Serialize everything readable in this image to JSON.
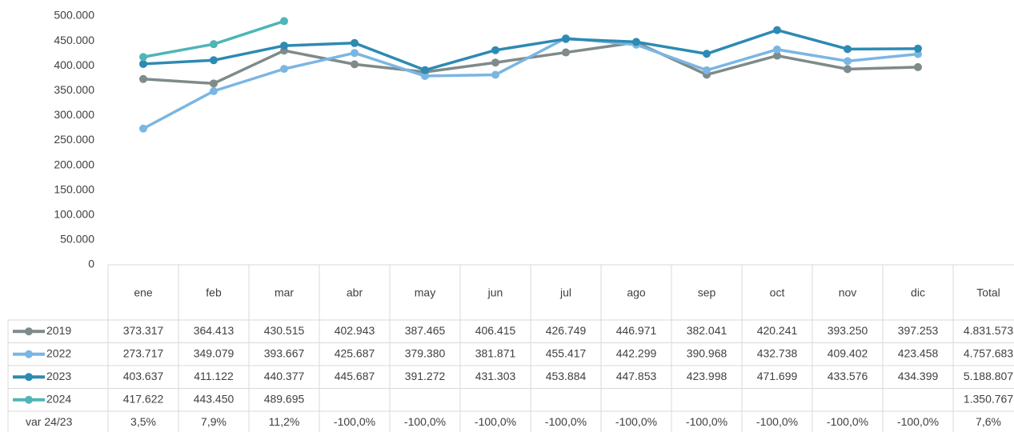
{
  "chart_data": {
    "type": "line",
    "categories": [
      "ene",
      "feb",
      "mar",
      "abr",
      "may",
      "jun",
      "jul",
      "ago",
      "sep",
      "oct",
      "nov",
      "dic"
    ],
    "total_header": "Total",
    "ylim": [
      0,
      500000
    ],
    "yticks": [
      {
        "value": 0,
        "label": "0"
      },
      {
        "value": 50000,
        "label": "50.000"
      },
      {
        "value": 100000,
        "label": "100.000"
      },
      {
        "value": 150000,
        "label": "150.000"
      },
      {
        "value": 200000,
        "label": "200.000"
      },
      {
        "value": 250000,
        "label": "250.000"
      },
      {
        "value": 300000,
        "label": "300.000"
      },
      {
        "value": 350000,
        "label": "350.000"
      },
      {
        "value": 400000,
        "label": "400.000"
      },
      {
        "value": 450000,
        "label": "450.000"
      },
      {
        "value": 500000,
        "label": "500.000"
      }
    ],
    "grid": false,
    "series": [
      {
        "name": "2019",
        "color": "#7f8a8a",
        "values": [
          373317,
          364413,
          430515,
          402943,
          387465,
          406415,
          426749,
          446971,
          382041,
          420241,
          393250,
          397253
        ],
        "value_labels": [
          "373.317",
          "364.413",
          "430.515",
          "402.943",
          "387.465",
          "406.415",
          "426.749",
          "446.971",
          "382.041",
          "420.241",
          "393.250",
          "397.253"
        ],
        "total": "4.831.573"
      },
      {
        "name": "2022",
        "color": "#7ab6e3",
        "values": [
          273717,
          349079,
          393667,
          425687,
          379380,
          381871,
          455417,
          442299,
          390968,
          432738,
          409402,
          423458
        ],
        "value_labels": [
          "273.717",
          "349.079",
          "393.667",
          "425.687",
          "379.380",
          "381.871",
          "455.417",
          "442.299",
          "390.968",
          "432.738",
          "409.402",
          "423.458"
        ],
        "total": "4.757.683"
      },
      {
        "name": "2023",
        "color": "#2d8ab3",
        "values": [
          403637,
          411122,
          440377,
          445687,
          391272,
          431303,
          453884,
          447853,
          423998,
          471699,
          433576,
          434399
        ],
        "value_labels": [
          "403.637",
          "411.122",
          "440.377",
          "445.687",
          "391.272",
          "431.303",
          "453.884",
          "447.853",
          "423.998",
          "471.699",
          "433.576",
          "434.399"
        ],
        "total": "5.188.807"
      },
      {
        "name": "2024",
        "color": "#4fb5b7",
        "values": [
          417622,
          443450,
          489695,
          null,
          null,
          null,
          null,
          null,
          null,
          null,
          null,
          null
        ],
        "value_labels": [
          "417.622",
          "443.450",
          "489.695",
          null,
          null,
          null,
          null,
          null,
          null,
          null,
          null,
          null
        ],
        "total": "1.350.767"
      }
    ],
    "var_row": {
      "label": "var 24/23",
      "values": [
        "3,5%",
        "7,9%",
        "11,2%",
        "-100,0%",
        "-100,0%",
        "-100,0%",
        "-100,0%",
        "-100,0%",
        "-100,0%",
        "-100,0%",
        "-100,0%",
        "-100,0%"
      ],
      "total": "7,6%"
    }
  }
}
